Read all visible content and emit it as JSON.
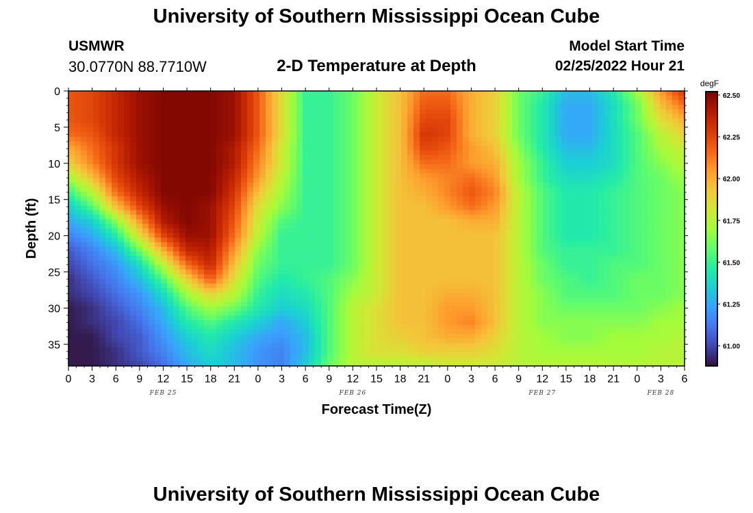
{
  "page": {
    "title": "University of Southern Mississippi Ocean Cube",
    "footer_title": "University of Southern Mississippi Ocean Cube",
    "station_name": "USMWR",
    "station_coords": "30.0770N  88.7710W",
    "start_label": "Model Start Time",
    "start_value": "02/25/2022 Hour 21"
  },
  "chart_data": {
    "type": "heatmap",
    "title": "2-D Temperature at Depth",
    "xlabel": "Forecast Time(Z)",
    "ylabel": "Depth (ft)",
    "x_unit": "forecast hours from FEB 25 00Z",
    "xlim": [
      0,
      78
    ],
    "ylim": [
      0,
      38
    ],
    "y_inverted": true,
    "x_ticks": [
      0,
      3,
      6,
      9,
      12,
      15,
      18,
      21,
      24,
      27,
      30,
      33,
      36,
      39,
      42,
      45,
      48,
      51,
      54,
      57,
      60,
      63,
      66,
      69,
      72,
      75,
      78
    ],
    "x_tick_labels": [
      "0",
      "3",
      "6",
      "9",
      "12",
      "15",
      "18",
      "21",
      "0",
      "3",
      "6",
      "9",
      "12",
      "15",
      "18",
      "21",
      "0",
      "3",
      "6",
      "9",
      "12",
      "15",
      "18",
      "21",
      "0",
      "3",
      "6"
    ],
    "y_ticks": [
      0,
      5,
      10,
      15,
      20,
      25,
      30,
      35
    ],
    "y_tick_labels": [
      "0",
      "5",
      "10",
      "15",
      "20",
      "25",
      "30",
      "35"
    ],
    "date_labels": [
      {
        "text": "FEB 25",
        "hour": 12
      },
      {
        "text": "FEB 26",
        "hour": 36
      },
      {
        "text": "FEB 27",
        "hour": 60
      },
      {
        "text": "FEB 28",
        "hour": 75
      }
    ],
    "colorbar": {
      "unit": "degF",
      "min": 60.88,
      "max": 62.52,
      "ticks": [
        61.0,
        61.25,
        61.5,
        61.75,
        62.0,
        62.25,
        62.5
      ],
      "tick_labels": [
        "61.00",
        "61.25",
        "61.50",
        "61.75",
        "62.00",
        "62.25",
        "62.50"
      ],
      "colormap": [
        "#30123b",
        "#4145ab",
        "#4675ed",
        "#39a2fc",
        "#1bcfd4",
        "#24eca6",
        "#61fc6c",
        "#a4fc3b",
        "#d1e834",
        "#f3c63a",
        "#fe9b2d",
        "#f36315",
        "#d93806",
        "#b11901",
        "#7a0402"
      ]
    },
    "grid_depths": [
      0,
      2,
      4,
      6,
      8,
      10,
      12,
      14,
      16,
      18,
      20,
      22,
      24,
      26,
      28,
      30,
      32,
      34,
      36,
      38
    ],
    "grid_hours": [
      0,
      3,
      6,
      9,
      12,
      15,
      18,
      21,
      24,
      27,
      30,
      33,
      36,
      39,
      42,
      45,
      48,
      51,
      54,
      57,
      60,
      63,
      66,
      69,
      72,
      75,
      78
    ],
    "values": [
      [
        62.2,
        62.25,
        62.35,
        62.45,
        62.5,
        62.5,
        62.5,
        62.45,
        62.2,
        61.85,
        61.5,
        61.5,
        61.6,
        61.8,
        61.95,
        62.15,
        62.15,
        62.0,
        61.9,
        61.6,
        61.5,
        61.3,
        61.3,
        61.45,
        61.7,
        62.05,
        62.3
      ],
      [
        62.2,
        62.25,
        62.35,
        62.45,
        62.5,
        62.5,
        62.5,
        62.45,
        62.2,
        61.85,
        61.5,
        61.5,
        61.6,
        61.8,
        61.95,
        62.2,
        62.2,
        62.0,
        61.9,
        61.6,
        61.45,
        61.25,
        61.25,
        61.4,
        61.6,
        61.95,
        62.15
      ],
      [
        62.2,
        62.25,
        62.35,
        62.45,
        62.5,
        62.5,
        62.5,
        62.45,
        62.2,
        61.85,
        61.5,
        61.5,
        61.6,
        61.8,
        61.95,
        62.25,
        62.25,
        62.0,
        61.9,
        61.6,
        61.45,
        61.25,
        61.25,
        61.4,
        61.6,
        61.85,
        62.0
      ],
      [
        62.15,
        62.2,
        62.35,
        62.45,
        62.5,
        62.5,
        62.5,
        62.45,
        62.2,
        61.85,
        61.5,
        61.5,
        61.6,
        61.8,
        61.95,
        62.3,
        62.25,
        62.0,
        61.9,
        61.6,
        61.45,
        61.25,
        61.25,
        61.4,
        61.55,
        61.75,
        61.9
      ],
      [
        62.0,
        62.15,
        62.3,
        62.45,
        62.5,
        62.5,
        62.5,
        62.4,
        62.15,
        61.8,
        61.5,
        61.5,
        61.6,
        61.8,
        61.95,
        62.25,
        62.2,
        62.05,
        61.95,
        61.65,
        61.45,
        61.3,
        61.3,
        61.4,
        61.55,
        61.7,
        61.8
      ],
      [
        61.9,
        62.1,
        62.3,
        62.45,
        62.5,
        62.5,
        62.5,
        62.4,
        62.1,
        61.8,
        61.5,
        61.5,
        61.6,
        61.8,
        61.95,
        62.15,
        62.15,
        62.05,
        62.0,
        61.7,
        61.5,
        61.35,
        61.35,
        61.4,
        61.55,
        61.65,
        61.75
      ],
      [
        61.7,
        61.95,
        62.25,
        62.4,
        62.5,
        62.5,
        62.5,
        62.35,
        62.05,
        61.75,
        61.5,
        61.5,
        61.6,
        61.8,
        61.95,
        62.05,
        62.1,
        62.15,
        62.05,
        61.7,
        61.5,
        61.4,
        61.4,
        61.45,
        61.55,
        61.6,
        61.7
      ],
      [
        61.5,
        61.75,
        62.15,
        62.35,
        62.5,
        62.5,
        62.5,
        62.3,
        61.95,
        61.7,
        61.5,
        61.5,
        61.6,
        61.8,
        61.95,
        62.0,
        62.1,
        62.2,
        62.1,
        61.75,
        61.55,
        61.45,
        61.45,
        61.5,
        61.55,
        61.6,
        61.65
      ],
      [
        61.35,
        61.55,
        61.95,
        62.25,
        62.45,
        62.5,
        62.45,
        62.25,
        61.85,
        61.65,
        61.5,
        61.5,
        61.6,
        61.8,
        61.95,
        61.95,
        62.05,
        62.15,
        62.05,
        61.75,
        61.55,
        61.45,
        61.45,
        61.5,
        61.55,
        61.6,
        61.65
      ],
      [
        61.25,
        61.35,
        61.65,
        62.05,
        62.4,
        62.5,
        62.45,
        62.2,
        61.8,
        61.55,
        61.5,
        61.5,
        61.6,
        61.8,
        61.95,
        61.95,
        61.95,
        62.0,
        62.0,
        61.75,
        61.55,
        61.45,
        61.45,
        61.5,
        61.55,
        61.6,
        61.65
      ],
      [
        61.15,
        61.25,
        61.45,
        61.85,
        62.25,
        62.45,
        62.45,
        62.15,
        61.75,
        61.5,
        61.5,
        61.5,
        61.6,
        61.8,
        61.95,
        61.95,
        61.95,
        61.95,
        61.95,
        61.75,
        61.55,
        61.45,
        61.45,
        61.5,
        61.55,
        61.6,
        61.65
      ],
      [
        61.05,
        61.15,
        61.3,
        61.6,
        62.0,
        62.35,
        62.4,
        62.05,
        61.65,
        61.5,
        61.5,
        61.5,
        61.6,
        61.8,
        61.95,
        61.95,
        61.95,
        61.95,
        61.95,
        61.75,
        61.55,
        61.5,
        61.5,
        61.5,
        61.55,
        61.6,
        61.65
      ],
      [
        61.0,
        61.1,
        61.2,
        61.4,
        61.75,
        62.15,
        62.35,
        61.95,
        61.6,
        61.5,
        61.5,
        61.5,
        61.6,
        61.8,
        61.95,
        61.95,
        61.95,
        61.95,
        61.95,
        61.75,
        61.6,
        61.5,
        61.5,
        61.55,
        61.55,
        61.6,
        61.65
      ],
      [
        60.95,
        61.05,
        61.15,
        61.3,
        61.55,
        61.9,
        62.2,
        61.85,
        61.55,
        61.45,
        61.5,
        61.55,
        61.65,
        61.8,
        61.95,
        61.95,
        61.95,
        61.95,
        61.95,
        61.75,
        61.6,
        61.55,
        61.5,
        61.55,
        61.6,
        61.6,
        61.65
      ],
      [
        60.95,
        61.0,
        61.1,
        61.2,
        61.4,
        61.7,
        61.9,
        61.75,
        61.5,
        61.4,
        61.45,
        61.55,
        61.7,
        61.8,
        61.95,
        61.95,
        62.0,
        62.0,
        61.95,
        61.75,
        61.65,
        61.55,
        61.55,
        61.55,
        61.6,
        61.6,
        61.65
      ],
      [
        60.9,
        60.95,
        61.05,
        61.15,
        61.3,
        61.55,
        61.7,
        61.6,
        61.45,
        61.35,
        61.4,
        61.55,
        61.75,
        61.85,
        61.95,
        61.95,
        62.05,
        62.05,
        61.95,
        61.75,
        61.65,
        61.6,
        61.6,
        61.6,
        61.6,
        61.65,
        61.7
      ],
      [
        60.9,
        60.95,
        61.0,
        61.1,
        61.25,
        61.45,
        61.55,
        61.45,
        61.35,
        61.25,
        61.35,
        61.55,
        61.75,
        61.85,
        61.95,
        61.95,
        62.05,
        62.1,
        61.95,
        61.75,
        61.65,
        61.65,
        61.65,
        61.65,
        61.65,
        61.7,
        61.7
      ],
      [
        60.9,
        60.9,
        61.0,
        61.05,
        61.2,
        61.35,
        61.45,
        61.35,
        61.25,
        61.2,
        61.3,
        61.55,
        61.75,
        61.85,
        61.9,
        61.95,
        62.0,
        62.0,
        61.9,
        61.75,
        61.7,
        61.65,
        61.65,
        61.7,
        61.7,
        61.7,
        61.75
      ],
      [
        60.9,
        60.9,
        60.95,
        61.05,
        61.15,
        61.3,
        61.4,
        61.3,
        61.2,
        61.15,
        61.3,
        61.55,
        61.75,
        61.85,
        61.85,
        61.9,
        61.9,
        61.9,
        61.85,
        61.75,
        61.7,
        61.7,
        61.7,
        61.7,
        61.7,
        61.75,
        61.75
      ],
      [
        60.9,
        60.9,
        60.95,
        61.0,
        61.1,
        61.25,
        61.35,
        61.3,
        61.2,
        61.15,
        61.35,
        61.6,
        61.75,
        61.75,
        61.75,
        61.75,
        61.8,
        61.8,
        61.8,
        61.75,
        61.75,
        61.75,
        61.75,
        61.75,
        61.75,
        61.75,
        61.75
      ]
    ]
  }
}
